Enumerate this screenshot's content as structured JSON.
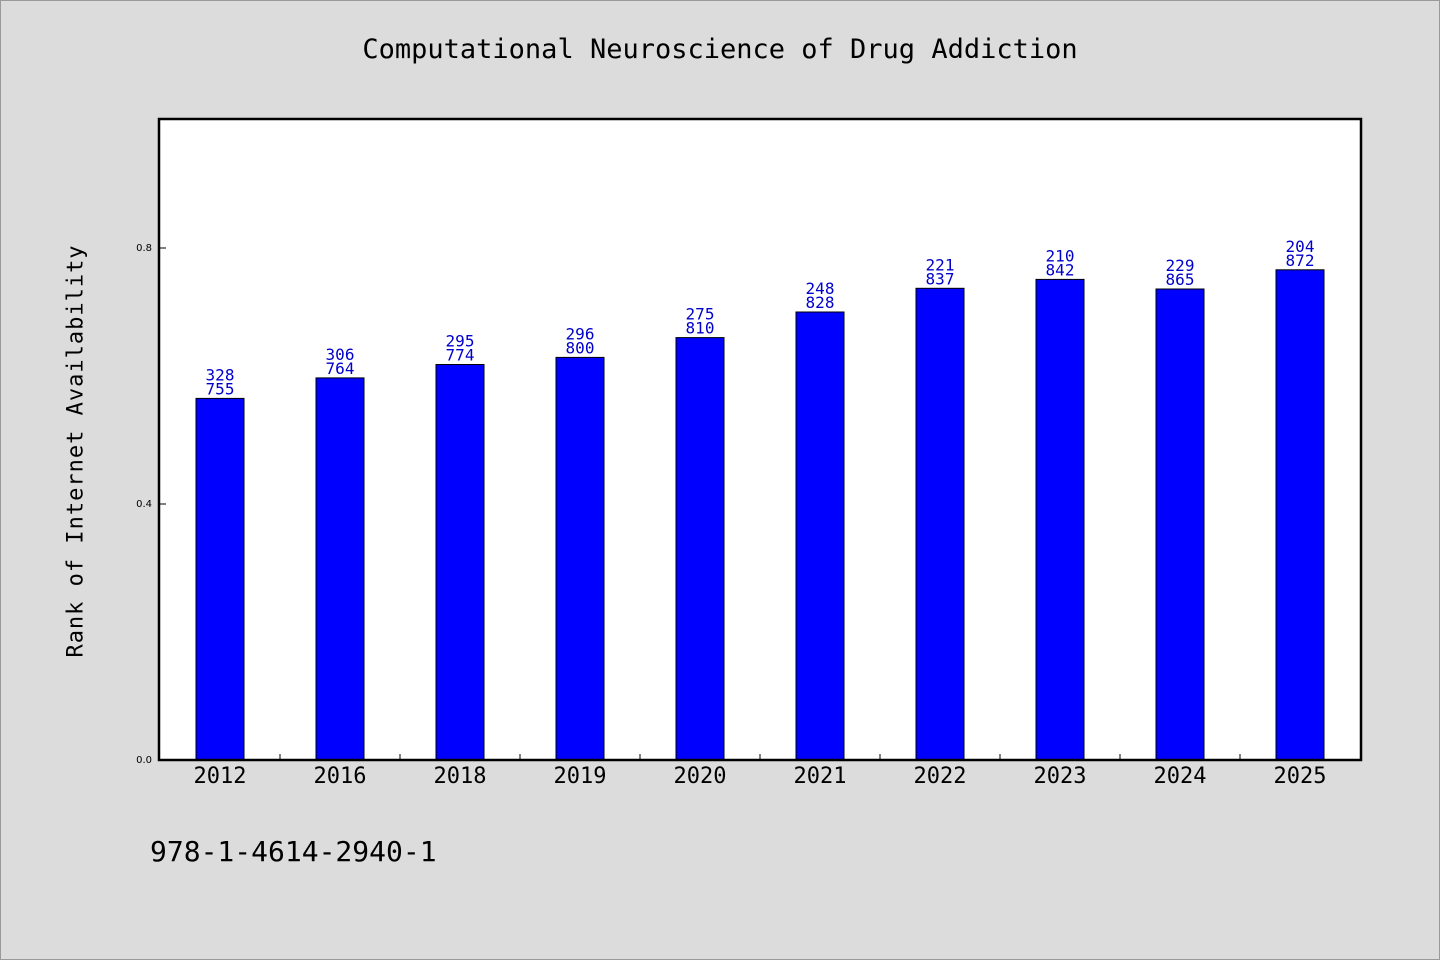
{
  "chart_data": {
    "type": "bar",
    "title": "Computational Neuroscience of Drug Addiction",
    "ylabel": "Rank of Internet Availability",
    "xlabel": "",
    "categories": [
      "2012",
      "2016",
      "2018",
      "2019",
      "2020",
      "2021",
      "2022",
      "2023",
      "2024",
      "2025"
    ],
    "values": [
      0.565,
      0.597,
      0.618,
      0.629,
      0.66,
      0.7,
      0.737,
      0.751,
      0.736,
      0.766
    ],
    "data_labels_top": [
      "328",
      "306",
      "295",
      "296",
      "275",
      "248",
      "221",
      "210",
      "229",
      "204"
    ],
    "data_labels_bottom": [
      "755",
      "764",
      "774",
      "800",
      "810",
      "828",
      "837",
      "842",
      "865",
      "872"
    ],
    "ylim": [
      0,
      1.0
    ],
    "yticks": [
      {
        "value": 0.0,
        "label": "0.0"
      },
      {
        "value": 0.4,
        "label": "0.4"
      },
      {
        "value": 0.8,
        "label": "0.8"
      }
    ],
    "grid": false,
    "legend": "none",
    "bar_color": "#0000ff",
    "label_color": "#0000cc"
  },
  "footer": {
    "isbn": "978-1-4614-2940-1"
  }
}
